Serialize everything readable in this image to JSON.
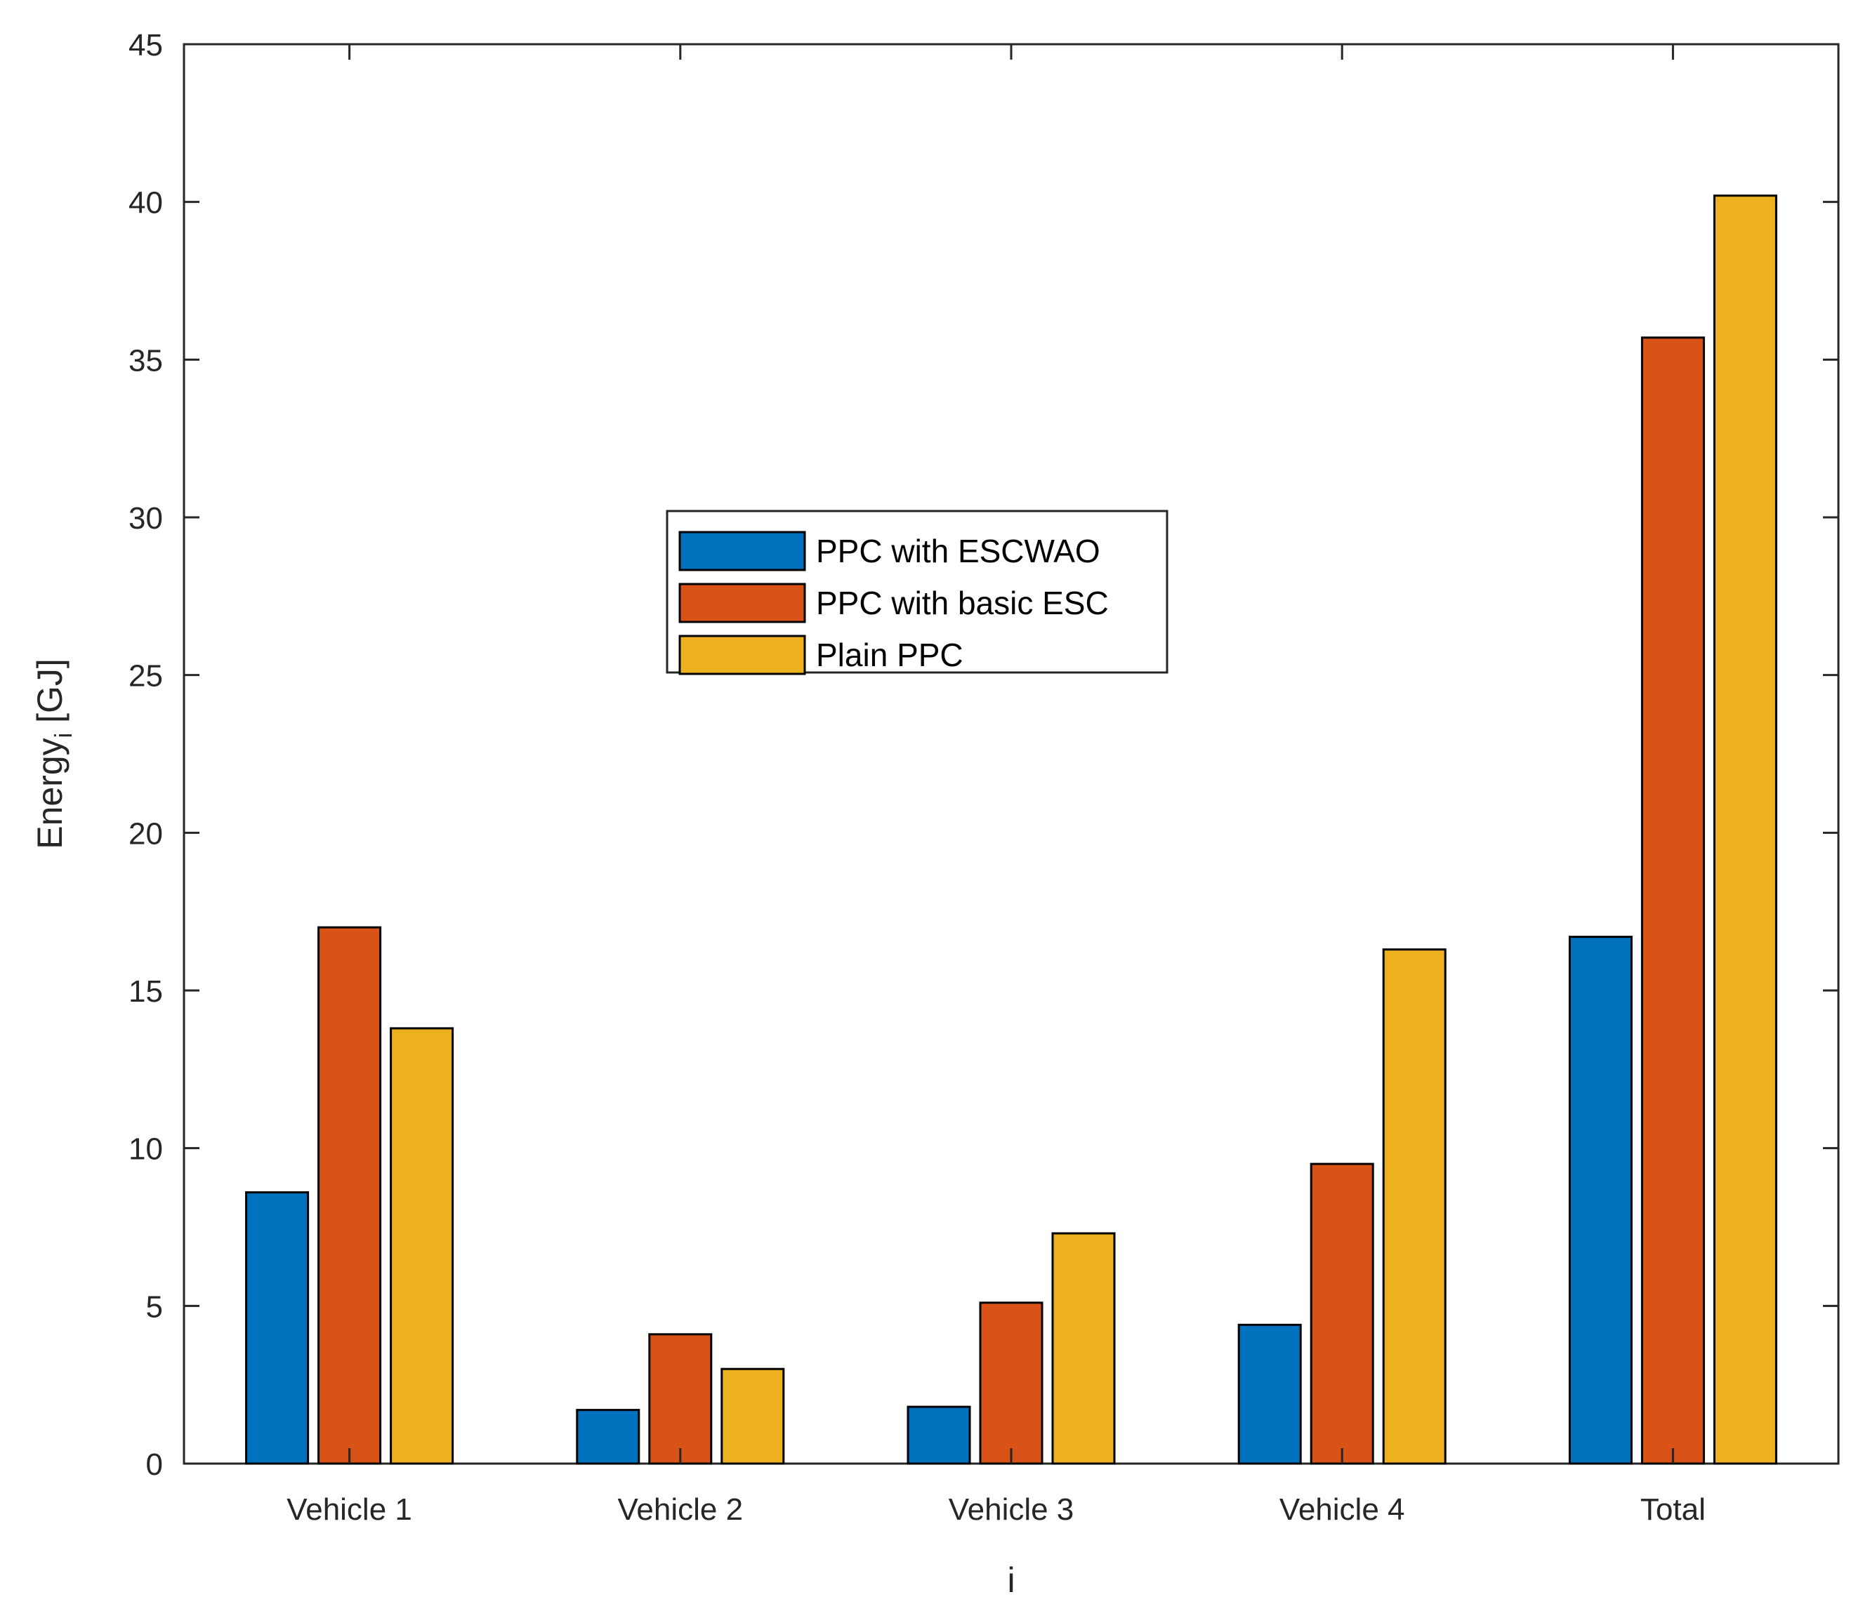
{
  "chart_data": {
    "type": "bar",
    "title": "",
    "xlabel": "i",
    "ylabel": {
      "main": "Energy",
      "subscript": "i",
      "unit": " [GJ]"
    },
    "categories": [
      "Vehicle 1",
      "Vehicle 2",
      "Vehicle 3",
      "Vehicle 4",
      "Total"
    ],
    "ylim": [
      0,
      45
    ],
    "yticks": [
      0,
      5,
      10,
      15,
      20,
      25,
      30,
      35,
      40,
      45
    ],
    "legend_position": "center",
    "series": [
      {
        "name": "PPC with ESCWAO",
        "color": "#0072BD",
        "values": [
          8.6,
          1.7,
          1.8,
          4.4,
          16.7
        ]
      },
      {
        "name": "PPC with basic ESC",
        "color": "#D95319",
        "values": [
          17.0,
          4.1,
          5.1,
          9.5,
          35.7
        ]
      },
      {
        "name": "Plain PPC",
        "color": "#EDB120",
        "values": [
          13.8,
          3.0,
          7.3,
          16.3,
          40.2
        ]
      }
    ]
  }
}
